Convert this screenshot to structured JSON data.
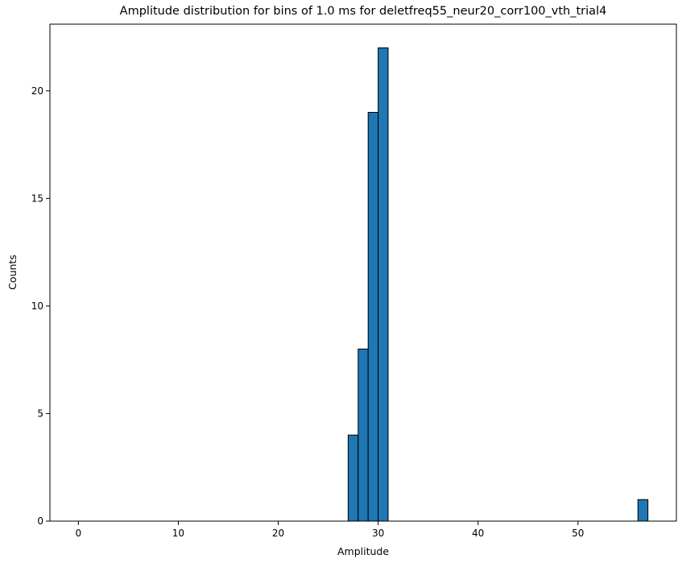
{
  "chart_data": {
    "type": "bar",
    "title": "Amplitude distribution for bins of 1.0 ms for deletfreq55_neur20_corr100_vth_trial4",
    "xlabel": "Amplitude",
    "ylabel": "Counts",
    "xlim": [
      -2.85,
      59.85
    ],
    "ylim": [
      0,
      23.1
    ],
    "xticks": [
      0,
      10,
      20,
      30,
      40,
      50
    ],
    "yticks": [
      0,
      5,
      10,
      15,
      20
    ],
    "bins": [
      {
        "start": 27,
        "end": 28,
        "count": 4
      },
      {
        "start": 28,
        "end": 29,
        "count": 8
      },
      {
        "start": 29,
        "end": 30,
        "count": 19
      },
      {
        "start": 30,
        "end": 31,
        "count": 22
      },
      {
        "start": 56,
        "end": 57,
        "count": 1
      }
    ],
    "bar_color": "#1f77b4",
    "edge_color": "#000000",
    "grid": false
  }
}
